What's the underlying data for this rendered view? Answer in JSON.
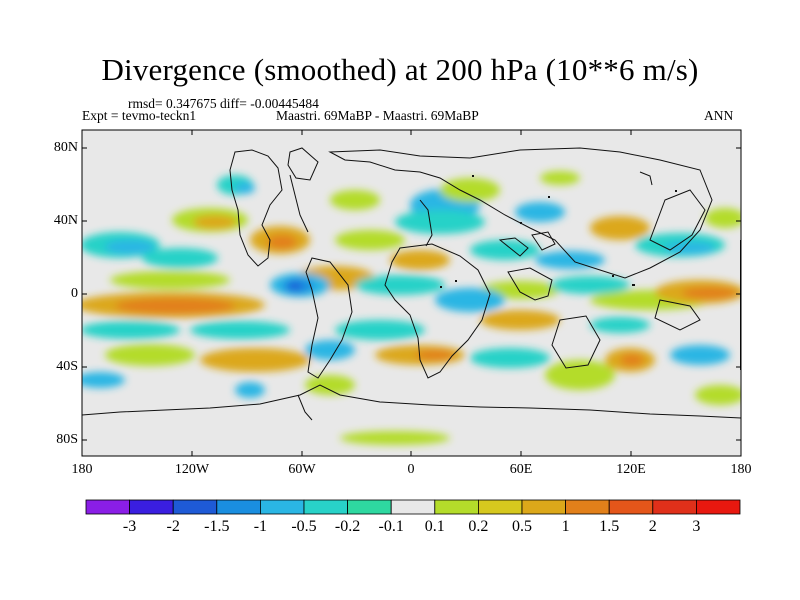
{
  "title": "Divergence (smoothed) at 200 hPa (10**6 m/s)",
  "stats_line": "rmsd= 0.347675 diff= -0.00445484",
  "experiment": "Expt = tevmo-teckn1",
  "case_label": "Maastri.  69MaBP - Maastri.  69MaBP",
  "period": "ANN",
  "lat_labels": [
    "80N",
    "40N",
    "0",
    "40S",
    "80S"
  ],
  "lon_labels": [
    "180",
    "120W",
    "60W",
    "0",
    "60E",
    "120E",
    "180"
  ],
  "colorbar": {
    "labels": [
      "-3",
      "-2",
      "-1.5",
      "-1",
      "-0.5",
      "-0.2",
      "-0.1",
      "0.1",
      "0.2",
      "0.5",
      "1",
      "1.5",
      "2",
      "3"
    ],
    "colors": [
      "#8a1ee6",
      "#3a1ee0",
      "#1e5ad6",
      "#1a8ee0",
      "#2ab6e4",
      "#28d2c8",
      "#2ed8a0",
      "#e8e8e8",
      "#b4dc2a",
      "#d6c81e",
      "#dca81a",
      "#e2801a",
      "#e4561a",
      "#e0301a",
      "#e8180f"
    ]
  },
  "colors": {
    "land_fill": "#e8e8e8",
    "coast_line": "#111111"
  }
}
